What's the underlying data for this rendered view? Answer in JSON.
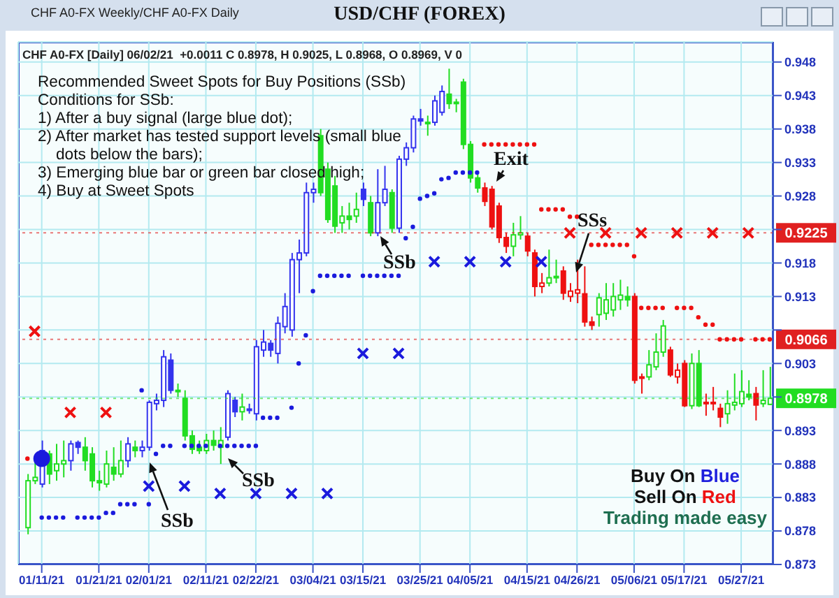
{
  "chart_data": {
    "type": "candlestick",
    "title": "USD/CHF (FOREX)",
    "subtitle": "CHF A0-FX [Daily] 06/02/21  +0.0011 C 0.8978, H 0.9025, L 0.8968, O 0.8969, V 0",
    "categories": [
      null,
      null,
      "01/11/21",
      null,
      null,
      null,
      null,
      null,
      null,
      null,
      "01/21/21",
      null,
      null,
      null,
      null,
      null,
      null,
      "02/01/21",
      null,
      null,
      null,
      null,
      null,
      null,
      null,
      "02/11/21",
      null,
      null,
      null,
      null,
      null,
      null,
      "02/22/21",
      null,
      null,
      null,
      null,
      null,
      null,
      null,
      "03/04/21",
      null,
      null,
      null,
      null,
      null,
      null,
      "03/15/21",
      null,
      null,
      null,
      null,
      null,
      null,
      null,
      "03/25/21",
      null,
      null,
      null,
      null,
      null,
      null,
      "04/05/21",
      null,
      null,
      null,
      null,
      null,
      null,
      null,
      "04/15/21",
      null,
      null,
      null,
      null,
      null,
      null,
      "04/26/21",
      null,
      null,
      null,
      null,
      null,
      null,
      null,
      "05/06/21",
      null,
      null,
      null,
      null,
      null,
      null,
      "05/17/21",
      null,
      null,
      null,
      null,
      null,
      null,
      null,
      "05/27/21",
      null,
      null,
      null,
      null
    ],
    "ohlc": [
      [
        0.8785,
        0.8865,
        0.8775,
        0.8855
      ],
      [
        0.8855,
        0.8885,
        0.885,
        0.886
      ],
      [
        0.885,
        0.8915,
        0.8845,
        0.89
      ],
      [
        0.8895,
        0.89,
        0.885,
        0.8865
      ],
      [
        0.887,
        0.891,
        0.8855,
        0.888
      ],
      [
        0.888,
        0.8915,
        0.886,
        0.8885
      ],
      [
        0.8885,
        0.8915,
        0.887,
        0.891
      ],
      [
        0.8912,
        0.8915,
        0.8895,
        0.8905
      ],
      [
        0.8905,
        0.892,
        0.887,
        0.8885
      ],
      [
        0.8895,
        0.8905,
        0.8845,
        0.8855
      ],
      [
        0.8855,
        0.887,
        0.884,
        0.8852
      ],
      [
        0.885,
        0.89,
        0.8845,
        0.888
      ],
      [
        0.8875,
        0.8905,
        0.8855,
        0.8865
      ],
      [
        0.8865,
        0.8915,
        0.886,
        0.8885
      ],
      [
        0.8885,
        0.892,
        0.8875,
        0.891
      ],
      [
        0.8905,
        0.8915,
        0.889,
        0.89
      ],
      [
        0.89,
        0.8915,
        0.889,
        0.8905
      ],
      [
        0.8905,
        0.8975,
        0.89,
        0.8972
      ],
      [
        0.897,
        0.8985,
        0.896,
        0.8975
      ],
      [
        0.8975,
        0.905,
        0.8965,
        0.904
      ],
      [
        0.9035,
        0.9045,
        0.8985,
        0.899
      ],
      [
        0.899,
        0.9,
        0.898,
        0.8988
      ],
      [
        0.8978,
        0.899,
        0.8915,
        0.8922
      ],
      [
        0.8922,
        0.893,
        0.8895,
        0.8902
      ],
      [
        0.8905,
        0.8915,
        0.8895,
        0.89
      ],
      [
        0.89,
        0.8925,
        0.8895,
        0.8915
      ],
      [
        0.8915,
        0.893,
        0.89,
        0.8908
      ],
      [
        0.8905,
        0.8935,
        0.888,
        0.8915
      ],
      [
        0.892,
        0.899,
        0.8915,
        0.8985
      ],
      [
        0.8975,
        0.898,
        0.895,
        0.8958
      ],
      [
        0.8958,
        0.8985,
        0.8945,
        0.8965
      ],
      [
        0.896,
        0.897,
        0.8955,
        0.8962
      ],
      [
        0.8955,
        0.9065,
        0.8945,
        0.9055
      ],
      [
        0.905,
        0.908,
        0.904,
        0.9062
      ],
      [
        0.906,
        0.9065,
        0.904,
        0.905
      ],
      [
        0.9045,
        0.91,
        0.903,
        0.909
      ],
      [
        0.9085,
        0.9135,
        0.9075,
        0.9115
      ],
      [
        0.908,
        0.9195,
        0.907,
        0.9185
      ],
      [
        0.9185,
        0.9215,
        0.9135,
        0.9195
      ],
      [
        0.9195,
        0.93,
        0.919,
        0.9285
      ],
      [
        0.9285,
        0.93,
        0.927,
        0.929
      ],
      [
        0.937,
        0.938,
        0.928,
        0.9285
      ],
      [
        0.932,
        0.933,
        0.924,
        0.9245
      ],
      [
        0.9295,
        0.931,
        0.9225,
        0.9235
      ],
      [
        0.924,
        0.9265,
        0.9225,
        0.925
      ],
      [
        0.925,
        0.927,
        0.923,
        0.9245
      ],
      [
        0.925,
        0.9285,
        0.924,
        0.926
      ],
      [
        0.929,
        0.93,
        0.9265,
        0.9275
      ],
      [
        0.927,
        0.928,
        0.922,
        0.9225
      ],
      [
        0.9225,
        0.932,
        0.922,
        0.927
      ],
      [
        0.927,
        0.9325,
        0.9265,
        0.929
      ],
      [
        0.9285,
        0.929,
        0.9225,
        0.9232
      ],
      [
        0.9232,
        0.934,
        0.9225,
        0.9335
      ],
      [
        0.9335,
        0.936,
        0.9325,
        0.9352
      ],
      [
        0.9352,
        0.94,
        0.9345,
        0.9395
      ],
      [
        0.9395,
        0.941,
        0.9385,
        0.9392
      ],
      [
        0.939,
        0.94,
        0.937,
        0.9388
      ],
      [
        0.939,
        0.943,
        0.9385,
        0.9422
      ],
      [
        0.9405,
        0.9445,
        0.94,
        0.9436
      ],
      [
        0.9432,
        0.947,
        0.941,
        0.9418
      ],
      [
        0.942,
        0.9425,
        0.9405,
        0.9418
      ],
      [
        0.945,
        0.9455,
        0.935,
        0.9357
      ],
      [
        0.9357,
        0.9362,
        0.93,
        0.9307
      ],
      [
        0.9307,
        0.9312,
        0.9285,
        0.9292
      ],
      [
        0.9292,
        0.93,
        0.9265,
        0.9272
      ],
      [
        0.929,
        0.9295,
        0.923,
        0.9234
      ],
      [
        0.9265,
        0.927,
        0.921,
        0.9218
      ],
      [
        0.9218,
        0.9225,
        0.9195,
        0.9205
      ],
      [
        0.9205,
        0.924,
        0.919,
        0.9222
      ],
      [
        0.9222,
        0.925,
        0.9215,
        0.9225
      ],
      [
        0.922,
        0.9225,
        0.919,
        0.9198
      ],
      [
        0.9195,
        0.92,
        0.913,
        0.9145
      ],
      [
        0.9145,
        0.9165,
        0.9135,
        0.915
      ],
      [
        0.915,
        0.92,
        0.9145,
        0.9158
      ],
      [
        0.9158,
        0.9185,
        0.915,
        0.916
      ],
      [
        0.9168,
        0.9175,
        0.9125,
        0.9135
      ],
      [
        0.913,
        0.915,
        0.9122,
        0.9138
      ],
      [
        0.9135,
        0.9185,
        0.912,
        0.914
      ],
      [
        0.9134,
        0.9175,
        0.9085,
        0.9092
      ],
      [
        0.9092,
        0.91,
        0.908,
        0.9087
      ],
      [
        0.9103,
        0.9135,
        0.9085,
        0.9128
      ],
      [
        0.9105,
        0.915,
        0.9095,
        0.9125
      ],
      [
        0.911,
        0.915,
        0.91,
        0.913
      ],
      [
        0.9125,
        0.9155,
        0.911,
        0.9132
      ],
      [
        0.913,
        0.9145,
        0.9115,
        0.9125
      ],
      [
        0.913,
        0.9135,
        0.9,
        0.9005
      ],
      [
        0.901,
        0.9015,
        0.8985,
        0.9008
      ],
      [
        0.901,
        0.905,
        0.9005,
        0.9028
      ],
      [
        0.9025,
        0.9075,
        0.902,
        0.9047
      ],
      [
        0.9047,
        0.9095,
        0.904,
        0.9086
      ],
      [
        0.905,
        0.9055,
        0.901,
        0.9013
      ],
      [
        0.901,
        0.903,
        0.9,
        0.902
      ],
      [
        0.903,
        0.9035,
        0.8965,
        0.8967
      ],
      [
        0.8967,
        0.9045,
        0.8962,
        0.903
      ],
      [
        0.903,
        0.905,
        0.8965,
        0.8967
      ],
      [
        0.8972,
        0.8985,
        0.8952,
        0.897
      ],
      [
        0.8972,
        0.8995,
        0.896,
        0.897
      ],
      [
        0.8963,
        0.897,
        0.8935,
        0.895
      ],
      [
        0.8955,
        0.899,
        0.894,
        0.897
      ],
      [
        0.8968,
        0.9015,
        0.896,
        0.8972
      ],
      [
        0.897,
        0.902,
        0.8965,
        0.8988
      ],
      [
        0.8984,
        0.9005,
        0.8975,
        0.898
      ],
      [
        0.8985,
        0.8995,
        0.8945,
        0.8968
      ],
      [
        0.897,
        0.902,
        0.8965,
        0.8975
      ],
      [
        0.8969,
        0.9025,
        0.8968,
        0.8978
      ]
    ],
    "colors": [
      "#22dd22",
      "#22dd22",
      "#3333ee",
      "#22dd22",
      "#22dd22",
      "#22dd22",
      "#3333ee",
      "#3333ee",
      "#22dd22",
      "#22dd22",
      "#22dd22",
      "#22dd22",
      "#22dd22",
      "#22dd22",
      "#3333ee",
      "#22dd22",
      "#3333ee",
      "#3333ee",
      "#3333ee",
      "#3333ee",
      "#3333ee",
      "#22dd22",
      "#22dd22",
      "#22dd22",
      "#22dd22",
      "#22dd22",
      "#22dd22",
      "#22dd22",
      "#3333ee",
      "#3333ee",
      "#22dd22",
      "#3333ee",
      "#3333ee",
      "#3333ee",
      "#3333ee",
      "#3333ee",
      "#3333ee",
      "#3333ee",
      "#3333ee",
      "#3333ee",
      "#3333ee",
      "#22dd22",
      "#22dd22",
      "#22dd22",
      "#22dd22",
      "#22dd22",
      "#22dd22",
      "#3333ee",
      "#22dd22",
      "#3333ee",
      "#3333ee",
      "#22dd22",
      "#3333ee",
      "#3333ee",
      "#3333ee",
      "#3333ee",
      "#22dd22",
      "#3333ee",
      "#3333ee",
      "#22dd22",
      "#22dd22",
      "#22dd22",
      "#22dd22",
      "#22dd22",
      "#ee1111",
      "#ee1111",
      "#ee1111",
      "#ee1111",
      "#22dd22",
      "#22dd22",
      "#ee1111",
      "#ee1111",
      "#ee1111",
      "#22dd22",
      "#22dd22",
      "#ee1111",
      "#ee1111",
      "#ee1111",
      "#ee1111",
      "#ee1111",
      "#22dd22",
      "#22dd22",
      "#22dd22",
      "#22dd22",
      "#22dd22",
      "#ee1111",
      "#ee1111",
      "#22dd22",
      "#22dd22",
      "#22dd22",
      "#ee1111",
      "#ee1111",
      "#ee1111",
      "#22dd22",
      "#22dd22",
      "#ee1111",
      "#ee1111",
      "#ee1111",
      "#22dd22",
      "#22dd22",
      "#22dd22",
      "#22dd22",
      "#ee1111",
      "#22dd22",
      "#22dd22"
    ],
    "series": [
      {
        "type": "scatter",
        "marker": "circle",
        "color": "#1a1add",
        "values": [
          null,
          null,
          0.88,
          0.88,
          0.88,
          0.88,
          null,
          0.88,
          0.88,
          0.88,
          0.88,
          0.8807,
          0.8807,
          0.882,
          0.882,
          0.882,
          0.899,
          0.882,
          0.8895,
          0.8907,
          0.8907,
          null,
          0.8907,
          0.8907,
          0.8907,
          0.8907,
          null,
          0.8907,
          0.8907,
          0.8907,
          0.8907,
          0.8907,
          0.8907,
          0.8949,
          0.8949,
          0.8949,
          null,
          0.8964,
          0.903,
          0.9072,
          0.9138,
          0.9161,
          0.9161,
          0.9161,
          0.9161,
          0.9161,
          null,
          0.9161,
          0.9161,
          0.9161,
          0.9161,
          0.9161,
          0.9161,
          0.9217,
          0.9234,
          0.9276,
          0.928,
          0.9284,
          0.9305,
          0.9307,
          0.9315,
          0.9315,
          0.9315,
          0.9315,
          null,
          null,
          null,
          null,
          null,
          null,
          null,
          null,
          null,
          null,
          null,
          null,
          null,
          null,
          null,
          null,
          null,
          null,
          null,
          null,
          null,
          null,
          null,
          null,
          null,
          null,
          null,
          null,
          null,
          null,
          null,
          null,
          null,
          null,
          null,
          null,
          null,
          null,
          null,
          null,
          null
        ]
      },
      {
        "type": "scatter",
        "marker": "circle",
        "color": "#ee1111",
        "values": [
          0.8888,
          null,
          null,
          null,
          null,
          null,
          null,
          null,
          null,
          null,
          null,
          null,
          null,
          null,
          null,
          null,
          null,
          null,
          null,
          null,
          null,
          null,
          null,
          null,
          null,
          null,
          null,
          null,
          null,
          null,
          null,
          null,
          null,
          null,
          null,
          null,
          null,
          null,
          null,
          null,
          null,
          null,
          null,
          null,
          null,
          null,
          null,
          null,
          null,
          null,
          null,
          null,
          null,
          null,
          null,
          null,
          null,
          null,
          null,
          null,
          null,
          null,
          null,
          null,
          0.9357,
          0.9357,
          0.9357,
          0.9357,
          0.9357,
          0.9357,
          0.9357,
          0.9357,
          0.926,
          0.926,
          0.926,
          0.926,
          0.9249,
          0.9249,
          null,
          0.9207,
          0.9207,
          0.9207,
          0.9207,
          0.9207,
          0.9207,
          0.919,
          0.9113,
          0.9113,
          0.9113,
          0.9113,
          null,
          0.9113,
          0.9113,
          0.9113,
          0.9099,
          0.9088,
          0.9088,
          0.9066,
          0.9066,
          0.9066,
          0.9066,
          null,
          0.9066,
          0.9066,
          0.9066
        ]
      },
      {
        "type": "scatter",
        "marker": "cross",
        "color": "#1a1add",
        "values": [
          null,
          null,
          null,
          null,
          null,
          null,
          null,
          null,
          null,
          null,
          null,
          null,
          null,
          null,
          null,
          null,
          null,
          0.8847,
          null,
          null,
          null,
          null,
          0.8847,
          null,
          null,
          null,
          null,
          0.8836,
          null,
          null,
          null,
          null,
          0.8836,
          null,
          null,
          null,
          null,
          0.8836,
          null,
          null,
          null,
          null,
          0.8836,
          null,
          null,
          null,
          null,
          0.9045,
          null,
          null,
          null,
          null,
          0.9045,
          null,
          null,
          null,
          null,
          0.9182,
          null,
          null,
          null,
          null,
          0.9182,
          null,
          null,
          null,
          null,
          0.9182,
          null,
          null,
          null,
          null,
          0.9182,
          null,
          null,
          null,
          null,
          null,
          null,
          null,
          null,
          null,
          null,
          null,
          null,
          null,
          null,
          null,
          null,
          null,
          null,
          null,
          null,
          null,
          null,
          null,
          null,
          null,
          null,
          null,
          null,
          null,
          null,
          null,
          null
        ]
      },
      {
        "type": "scatter",
        "marker": "cross",
        "color": "#ee1111",
        "values": [
          null,
          0.9078,
          null,
          null,
          null,
          null,
          0.8957,
          null,
          null,
          null,
          null,
          0.8957,
          null,
          null,
          null,
          null,
          null,
          null,
          null,
          null,
          null,
          null,
          null,
          null,
          null,
          null,
          null,
          null,
          null,
          null,
          null,
          null,
          null,
          null,
          null,
          null,
          null,
          null,
          null,
          null,
          null,
          null,
          null,
          null,
          null,
          null,
          null,
          null,
          null,
          null,
          null,
          null,
          null,
          null,
          null,
          null,
          null,
          null,
          null,
          null,
          null,
          null,
          null,
          null,
          null,
          null,
          null,
          null,
          null,
          null,
          null,
          null,
          null,
          null,
          null,
          null,
          0.9225,
          null,
          null,
          null,
          null,
          0.9225,
          null,
          null,
          null,
          null,
          0.9225,
          null,
          null,
          null,
          null,
          0.9225,
          null,
          null,
          null,
          null,
          0.9225,
          null,
          null,
          null,
          null,
          0.9225,
          null,
          null,
          null
        ]
      },
      {
        "type": "bubble",
        "marker": "circle",
        "color": "#1a1add",
        "values": [
          null,
          null,
          0.8888,
          null,
          null,
          null,
          null,
          null,
          null,
          null,
          null,
          null,
          null,
          null,
          null,
          null,
          null,
          null,
          null,
          null,
          null,
          null,
          null,
          null,
          null,
          null,
          null,
          null,
          null,
          null,
          null,
          null,
          null,
          null,
          null,
          null,
          null,
          null,
          null,
          null,
          null,
          null,
          null,
          null,
          null,
          null,
          null,
          null,
          null,
          null,
          null,
          null,
          null,
          null,
          null,
          null,
          null,
          null,
          null,
          null,
          null,
          null,
          null,
          null,
          null,
          null,
          null,
          null,
          null,
          null,
          null,
          null,
          null,
          null,
          null,
          null,
          null,
          null,
          null,
          null,
          null,
          null,
          null,
          null,
          null,
          null,
          null,
          null,
          null,
          null,
          null,
          null,
          null,
          null,
          null,
          null,
          null,
          null,
          null,
          null,
          null,
          null,
          null,
          null,
          null
        ],
        "sizes": [
          null,
          null,
          1,
          null,
          null,
          null,
          null,
          null,
          null,
          null,
          null,
          null,
          null,
          null,
          null,
          null,
          null,
          null,
          null,
          null,
          null,
          null,
          null,
          null,
          null,
          null,
          null,
          null,
          null,
          null,
          null,
          null,
          null,
          null,
          null,
          null,
          null,
          null,
          null,
          null,
          null,
          null,
          null,
          null,
          null,
          null,
          null,
          null,
          null,
          null,
          null,
          null,
          null,
          null,
          null,
          null,
          null,
          null,
          null,
          null,
          null,
          null,
          null,
          null,
          null,
          null,
          null,
          null,
          null,
          null,
          null,
          null,
          null,
          null,
          null,
          null,
          null,
          null,
          null,
          null,
          null,
          null,
          null,
          null,
          null,
          null,
          null,
          null,
          null,
          null,
          null,
          null,
          null,
          null,
          null,
          null,
          null,
          null,
          null,
          null,
          null,
          null,
          null,
          null,
          null
        ]
      }
    ],
    "ylim": [
      0.873,
      0.951
    ],
    "yticks": [
      0.873,
      0.878,
      0.883,
      0.888,
      0.893,
      {
        "value": 0.898,
        "label": null
      },
      0.903,
      {
        "value": 0.908,
        "label": null
      },
      0.913,
      0.918,
      {
        "value": 0.923,
        "label": null
      },
      0.928,
      0.933,
      0.938,
      0.943,
      0.948
    ],
    "grid": true,
    "ref_lines": [
      {
        "axis": "y",
        "value": 0.9225,
        "label": "0.9225",
        "color": "#e02020"
      },
      {
        "axis": "y",
        "value": 0.9066,
        "label": "0.9066",
        "color": "#e02020"
      },
      {
        "axis": "y",
        "value": 0.8978,
        "label": "0.8978",
        "color": "#22dd22"
      }
    ],
    "annotations": [
      "CHF A0-FX Weekly/CHF A0-FX Daily",
      "Recommended Sweet Spots for Buy Positions (SSb)",
      "Conditions for SSb:",
      "1) After a buy signal (large blue dot);",
      "2) After market has tested support levels (small blue dots below the bars);",
      "3) Emerging blue bar or green bar closed high;",
      "4) Buy at Sweet Spots",
      "Exit",
      "SSs",
      "SSb",
      "SSb",
      "SSb",
      "Buy On Blue",
      "Sell On Red",
      "Trading made easy"
    ]
  }
}
